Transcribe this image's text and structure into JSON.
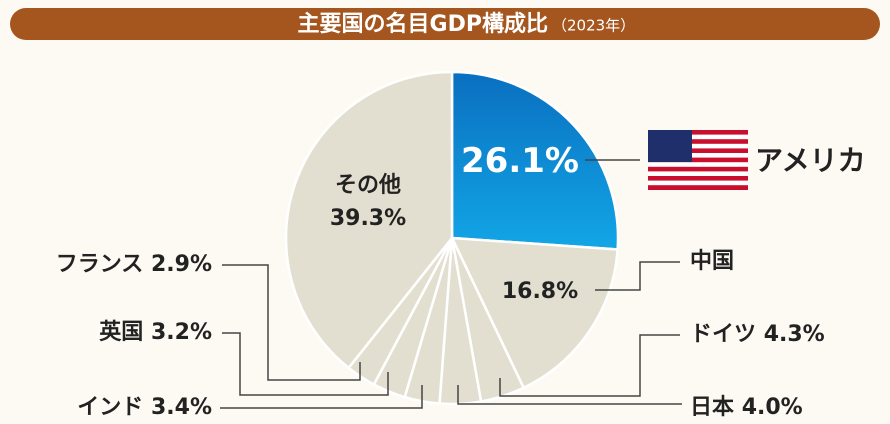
{
  "chart_data": {
    "type": "pie",
    "title": "主要国の名目GDP構成比",
    "subtitle": "（2023年）",
    "categories": [
      "アメリカ",
      "中国",
      "ドイツ",
      "日本",
      "インド",
      "英国",
      "フランス",
      "その他"
    ],
    "values": [
      26.1,
      16.8,
      4.3,
      4.0,
      3.4,
      3.2,
      2.9,
      39.3
    ],
    "value_labels": [
      "26.1%",
      "16.8%",
      "4.3%",
      "4.0%",
      "3.4%",
      "3.2%",
      "2.9%",
      "39.3%"
    ],
    "colors": [
      "#1590d8",
      "#e3dfd0",
      "#e3dfd0",
      "#e3dfd0",
      "#e3dfd0",
      "#e3dfd0",
      "#e3dfd0",
      "#e3dfd0"
    ]
  }
}
